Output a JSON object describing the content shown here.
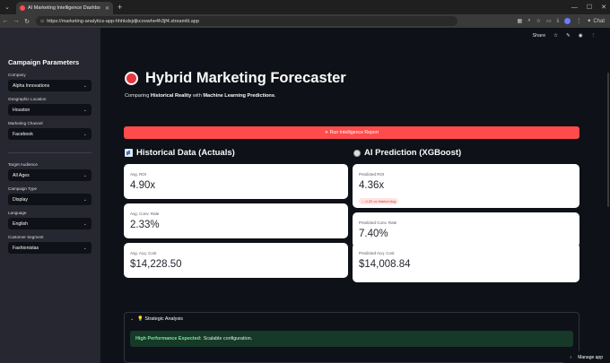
{
  "browser": {
    "tab_title": "AI Marketing Intelligence Dashbo",
    "tab_close": "✕",
    "new_tab": "+",
    "url": "https://marketing-analytics-app-hhhkdsjdjkcoowhe4h3jf4.streamlit.app",
    "chat_label": "Chat",
    "menu_icon": "chevron-down-icon"
  },
  "header": {
    "share_label": "Share"
  },
  "sidebar": {
    "title": "Campaign Parameters",
    "fields_top": [
      {
        "label": "Company",
        "value": "Alpha Innovations"
      },
      {
        "label": "Geographic Location",
        "value": "Houston"
      },
      {
        "label": "Marketing Channel",
        "value": "Facebook"
      }
    ],
    "fields_bottom": [
      {
        "label": "Target Audience",
        "value": "All Ages"
      },
      {
        "label": "Campaign Type",
        "value": "Display"
      },
      {
        "label": "Language",
        "value": "English"
      },
      {
        "label": "Customer Segment",
        "value": "Fashionistas"
      }
    ]
  },
  "main": {
    "title": "Hybrid Marketing Forecaster",
    "subtitle_prefix": "Comparing ",
    "subtitle_bold1": "Historical Reality",
    "subtitle_mid": " with ",
    "subtitle_bold2": "Machine Learning Predictions",
    "subtitle_end": ".",
    "run_button": "✈ Run Intelligence Report",
    "historical_title": "Historical Data (Actuals)",
    "ai_title": "AI Prediction (XGBoost)",
    "historical_cards": [
      {
        "label": "Avg. ROI",
        "value": "4.90x"
      },
      {
        "label": "Avg. Conv. Rate",
        "value": "2.33%"
      },
      {
        "label": "Avg. Acq. Cost",
        "value": "$14,228.50"
      }
    ],
    "ai_cards": [
      {
        "label": "Predicted ROI",
        "value": "4.36x",
        "delta": "↓ -0.20 vs Market Avg"
      },
      {
        "label": "Predicted Conv. Rate",
        "value": "7.40%"
      },
      {
        "label": "Predicted Acq. Cost",
        "value": "$14,008.84"
      }
    ],
    "expander_label": "💡 Strategic Analysis",
    "alert_bold": "High Performance Expected:",
    "alert_text": "Scalable configuration.",
    "manage_app": "Manage app"
  }
}
